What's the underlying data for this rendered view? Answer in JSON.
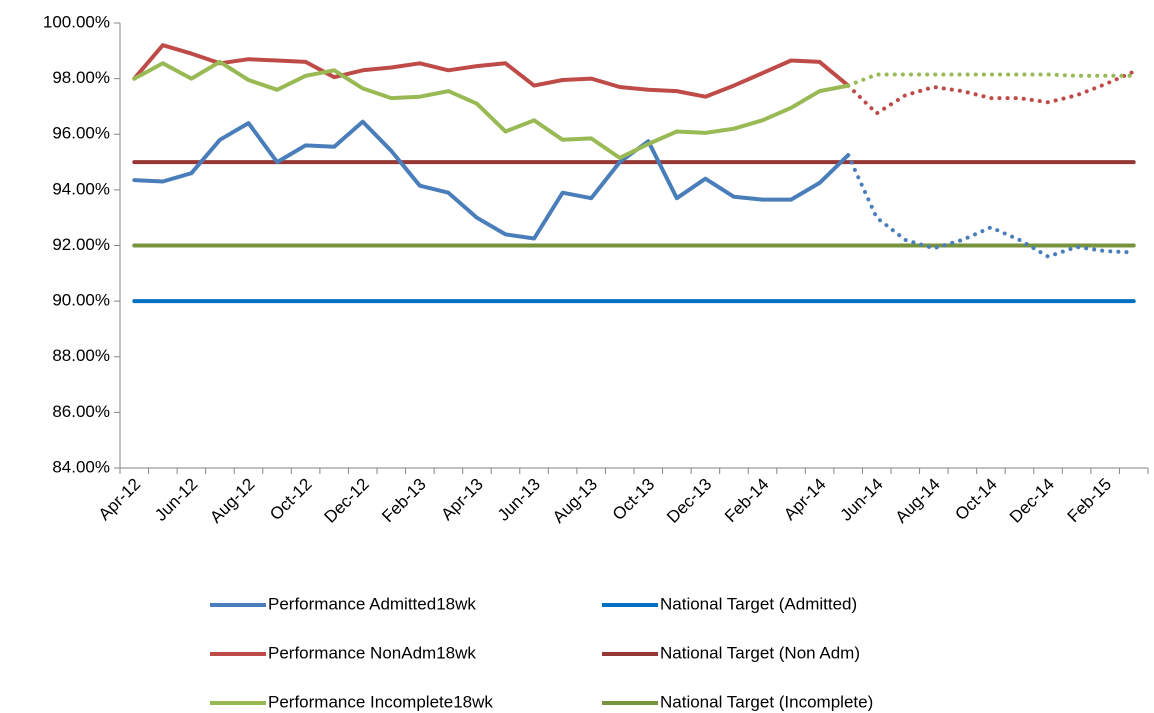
{
  "chart_data": {
    "type": "line",
    "categories": [
      "Apr-12",
      null,
      "Jun-12",
      null,
      "Aug-12",
      null,
      "Oct-12",
      null,
      "Dec-12",
      null,
      "Feb-13",
      null,
      "Apr-13",
      null,
      "Jun-13",
      null,
      "Aug-13",
      null,
      "Oct-13",
      null,
      "Dec-13",
      null,
      "Feb-14",
      null,
      "Apr-14",
      null,
      "Jun-14",
      null,
      "Aug-14",
      null,
      "Oct-14",
      null,
      "Dec-14",
      null,
      "Feb-15",
      null
    ],
    "ylim": [
      84,
      100
    ],
    "yticks": [
      {
        "value": 84,
        "label": "84.00%"
      },
      {
        "value": 86,
        "label": "86.00%"
      },
      {
        "value": 88,
        "label": "88.00%"
      },
      {
        "value": 90,
        "label": "90.00%"
      },
      {
        "value": 92,
        "label": "92.00%"
      },
      {
        "value": 94,
        "label": "94.00%"
      },
      {
        "value": 96,
        "label": "96.00%"
      },
      {
        "value": 98,
        "label": "98.00%"
      },
      {
        "value": 100,
        "label": "100.00%"
      }
    ],
    "legend": "bottom",
    "series": [
      {
        "name": "Performance Admitted18wk",
        "color": "#4a7ebb",
        "values": [
          94.35,
          94.3,
          94.6,
          95.8,
          96.4,
          95.0,
          95.6,
          95.55,
          96.45,
          95.4,
          94.15,
          93.9,
          93.0,
          92.4,
          92.25,
          93.9,
          93.7,
          95.0,
          95.75,
          93.7,
          94.4,
          93.75,
          93.65,
          93.65,
          94.25,
          95.25,
          null,
          null,
          null,
          null,
          null,
          null,
          null,
          null,
          null,
          null
        ],
        "forecast_values": [
          null,
          null,
          null,
          null,
          null,
          null,
          null,
          null,
          null,
          null,
          null,
          null,
          null,
          null,
          null,
          null,
          null,
          null,
          null,
          null,
          null,
          null,
          null,
          null,
          null,
          95.25,
          93.0,
          92.2,
          91.9,
          92.2,
          92.65,
          92.2,
          91.6,
          91.95,
          91.8,
          91.75
        ]
      },
      {
        "name": "National Target (Admitted)",
        "color": "#0070c0",
        "values": [
          90,
          90,
          90,
          90,
          90,
          90,
          90,
          90,
          90,
          90,
          90,
          90,
          90,
          90,
          90,
          90,
          90,
          90,
          90,
          90,
          90,
          90,
          90,
          90,
          90,
          90,
          90,
          90,
          90,
          90,
          90,
          90,
          90,
          90,
          90,
          90
        ]
      },
      {
        "name": "Performance NonAdm18wk",
        "color": "#be4b48",
        "values": [
          98.0,
          99.2,
          98.9,
          98.55,
          98.7,
          98.65,
          98.6,
          98.05,
          98.3,
          98.4,
          98.55,
          98.3,
          98.45,
          98.55,
          97.75,
          97.95,
          98.0,
          97.7,
          97.6,
          97.55,
          97.35,
          97.75,
          98.2,
          98.65,
          98.6,
          97.75,
          null,
          null,
          null,
          null,
          null,
          null,
          null,
          null,
          null,
          null
        ],
        "forecast_values": [
          null,
          null,
          null,
          null,
          null,
          null,
          null,
          null,
          null,
          null,
          null,
          null,
          null,
          null,
          null,
          null,
          null,
          null,
          null,
          null,
          null,
          null,
          null,
          null,
          null,
          97.75,
          96.75,
          97.4,
          97.7,
          97.55,
          97.3,
          97.3,
          97.15,
          97.4,
          97.8,
          98.25
        ]
      },
      {
        "name": "National Target (Non Adm)",
        "color": "#953735",
        "values": [
          95,
          95,
          95,
          95,
          95,
          95,
          95,
          95,
          95,
          95,
          95,
          95,
          95,
          95,
          95,
          95,
          95,
          95,
          95,
          95,
          95,
          95,
          95,
          95,
          95,
          95,
          95,
          95,
          95,
          95,
          95,
          95,
          95,
          95,
          95,
          95
        ]
      },
      {
        "name": "Performance Incomplete18wk",
        "color": "#98b954",
        "values": [
          98.0,
          98.55,
          98.0,
          98.6,
          97.95,
          97.6,
          98.1,
          98.3,
          97.65,
          97.3,
          97.35,
          97.55,
          97.1,
          96.1,
          96.5,
          95.8,
          95.85,
          95.15,
          95.65,
          96.1,
          96.05,
          96.2,
          96.5,
          96.95,
          97.55,
          97.75,
          null,
          null,
          null,
          null,
          null,
          null,
          null,
          null,
          null,
          null
        ],
        "forecast_values": [
          null,
          null,
          null,
          null,
          null,
          null,
          null,
          null,
          null,
          null,
          null,
          null,
          null,
          null,
          null,
          null,
          null,
          null,
          null,
          null,
          null,
          null,
          null,
          null,
          null,
          97.75,
          98.15,
          98.15,
          98.15,
          98.15,
          98.15,
          98.15,
          98.15,
          98.1,
          98.1,
          98.1
        ]
      },
      {
        "name": "National Target (Incomplete)",
        "color": "#77933c",
        "values": [
          92,
          92,
          92,
          92,
          92,
          92,
          92,
          92,
          92,
          92,
          92,
          92,
          92,
          92,
          92,
          92,
          92,
          92,
          92,
          92,
          92,
          92,
          92,
          92,
          92,
          92,
          92,
          92,
          92,
          92,
          92,
          92,
          92,
          92,
          92,
          92
        ]
      }
    ]
  }
}
